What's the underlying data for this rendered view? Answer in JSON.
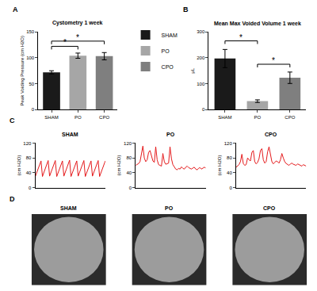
{
  "chart_data": [
    {
      "type": "bar",
      "panel_label": "A",
      "title": "Cystometry 1 week",
      "y_label": "Peak Voiding Pressure (cm H2O)",
      "categories": [
        "SHAM",
        "PO",
        "CPO"
      ],
      "values": [
        72,
        104,
        103
      ],
      "errors": [
        3,
        5,
        7
      ],
      "colors": [
        "#1a1a1a",
        "#a6a6a6",
        "#7f7f7f"
      ],
      "ylim": [
        0,
        150
      ],
      "yticks": [
        0,
        50,
        100,
        150
      ],
      "grid": false,
      "legend": "right",
      "annotations": [
        {
          "text": "*",
          "from": "SHAM",
          "to": "PO",
          "y": 122
        },
        {
          "text": "*",
          "from": "SHAM",
          "to": "CPO",
          "y": 132
        }
      ]
    },
    {
      "type": "bar",
      "panel_label": "B",
      "title": "Mean Max Voided Volume 1 week",
      "y_label": "μL",
      "categories": [
        "SHAM",
        "PO",
        "CPO"
      ],
      "values": [
        197,
        33,
        123
      ],
      "errors": [
        35,
        5,
        22
      ],
      "colors": [
        "#1a1a1a",
        "#a6a6a6",
        "#7f7f7f"
      ],
      "ylim": [
        0,
        300
      ],
      "yticks": [
        0,
        100,
        200,
        300
      ],
      "grid": false,
      "annotations": [
        {
          "text": "*",
          "from": "SHAM",
          "to": "PO",
          "y": 265
        },
        {
          "text": "*",
          "from": "PO",
          "to": "CPO",
          "y": 175
        }
      ]
    },
    {
      "type": "line",
      "panel_label": "C",
      "title": "SHAM",
      "y_label": "(cm H2O)",
      "color": "#e41a1c",
      "values": [
        30,
        40,
        52,
        64,
        72,
        30,
        41,
        53,
        65,
        73,
        31,
        42,
        54,
        66,
        73,
        30,
        41,
        53,
        65,
        72,
        31,
        42,
        54,
        66,
        74,
        30,
        40,
        52,
        64,
        72,
        31,
        42,
        53,
        65,
        73,
        30,
        41,
        53,
        65,
        72,
        31,
        42,
        54,
        66,
        73,
        30,
        41,
        52,
        64,
        72
      ],
      "ylim": [
        0,
        120
      ],
      "yticks": [
        0,
        40,
        80,
        120
      ],
      "grid": false,
      "tick_labels": "y"
    },
    {
      "type": "line",
      "title": "PO",
      "y_label": "(cm H2O)",
      "color": "#e41a1c",
      "values": [
        60,
        62,
        65,
        70,
        90,
        112,
        80,
        70,
        75,
        95,
        100,
        85,
        72,
        68,
        110,
        75,
        62,
        60,
        58,
        92,
        70,
        63,
        64,
        66,
        110,
        78,
        62,
        55,
        50,
        48,
        52,
        50,
        56,
        52,
        50,
        55,
        58,
        54,
        52,
        50,
        53,
        55,
        50,
        48,
        52,
        54,
        50,
        52,
        55,
        53
      ],
      "ylim": [
        0,
        120
      ],
      "yticks": [
        0,
        40,
        80,
        120
      ],
      "grid": false,
      "tick_labels": "y"
    },
    {
      "type": "line",
      "title": "CPO",
      "y_label": "(cm H2O)",
      "color": "#e41a1c",
      "values": [
        55,
        58,
        62,
        70,
        90,
        65,
        60,
        62,
        80,
        75,
        72,
        95,
        100,
        70,
        64,
        68,
        78,
        100,
        105,
        75,
        66,
        70,
        96,
        110,
        85,
        70,
        64,
        68,
        72,
        70,
        66,
        75,
        92,
        80,
        70,
        65,
        62,
        60,
        64,
        66,
        63,
        62,
        60,
        64,
        62,
        60,
        58,
        62,
        60,
        58
      ],
      "ylim": [
        0,
        120
      ],
      "yticks": [
        0,
        40,
        80,
        120
      ],
      "grid": false,
      "tick_labels": "y"
    }
  ],
  "images": {
    "panel_label": "D",
    "titles": [
      "SHAM",
      "PO",
      "CPO"
    ]
  }
}
